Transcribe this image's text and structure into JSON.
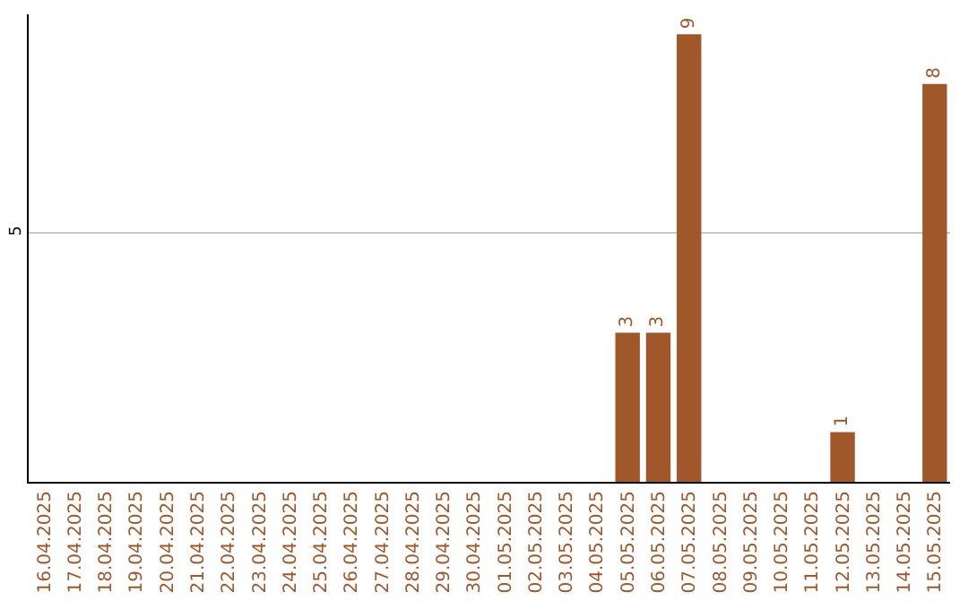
{
  "chart_data": {
    "type": "bar",
    "categories": [
      "16.04.2025",
      "17.04.2025",
      "18.04.2025",
      "19.04.2025",
      "20.04.2025",
      "21.04.2025",
      "22.04.2025",
      "23.04.2025",
      "24.04.2025",
      "25.04.2025",
      "26.04.2025",
      "27.04.2025",
      "28.04.2025",
      "29.04.2025",
      "30.04.2025",
      "01.05.2025",
      "02.05.2025",
      "03.05.2025",
      "04.05.2025",
      "05.05.2025",
      "06.05.2025",
      "07.05.2025",
      "08.05.2025",
      "09.05.2025",
      "10.05.2025",
      "11.05.2025",
      "12.05.2025",
      "13.05.2025",
      "14.05.2025",
      "15.05.2025"
    ],
    "values": [
      null,
      null,
      null,
      null,
      null,
      null,
      null,
      null,
      null,
      null,
      null,
      null,
      null,
      null,
      null,
      null,
      null,
      null,
      null,
      3,
      3,
      9,
      null,
      null,
      null,
      null,
      1,
      null,
      null,
      8
    ],
    "ylim": [
      0,
      9.4
    ],
    "yticks": [
      5
    ],
    "grid": "y",
    "data_labels": true,
    "color": "#a0582a",
    "legend": false
  }
}
